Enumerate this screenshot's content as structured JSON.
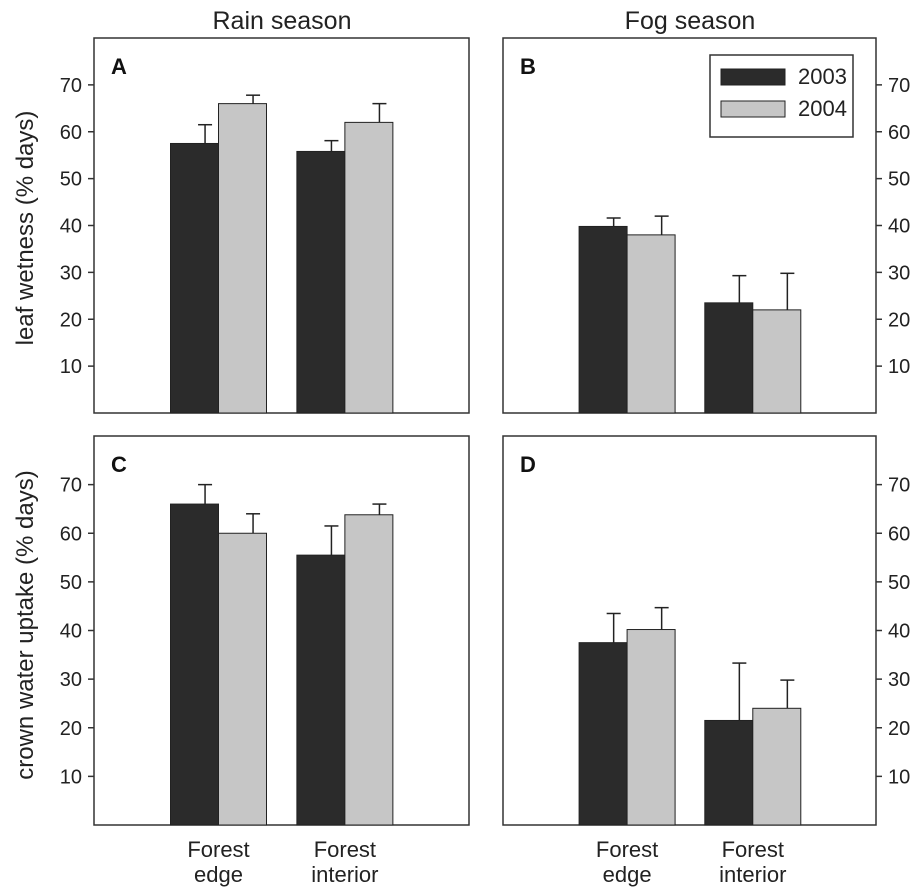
{
  "column_titles": [
    "Rain season",
    "Fog season"
  ],
  "legend": [
    "2003",
    "2004"
  ],
  "colors": {
    "2003": "#2b2b2b",
    "2004": "#c6c6c6",
    "frame": "#333333"
  },
  "row_ylabels": [
    "leaf wetness (% days)",
    "crown water uptake (% days)"
  ],
  "chart_data": [
    {
      "type": "bar",
      "panel": "A",
      "title": "Rain season",
      "ylabel": "leaf wetness (% days)",
      "categories": [
        "Forest edge",
        "Forest interior"
      ],
      "ylim": [
        0,
        80
      ],
      "yticks": [
        10,
        20,
        30,
        40,
        50,
        60,
        70
      ],
      "series": [
        {
          "name": "2003",
          "values": [
            57.5,
            55.8
          ],
          "errors": [
            4.0,
            2.3
          ]
        },
        {
          "name": "2004",
          "values": [
            66.0,
            62.0
          ],
          "errors": [
            1.8,
            4.0
          ]
        }
      ]
    },
    {
      "type": "bar",
      "panel": "B",
      "title": "Fog season",
      "categories": [
        "Forest edge",
        "Forest interior"
      ],
      "ylim": [
        0,
        80
      ],
      "yticks": [
        10,
        20,
        30,
        40,
        50,
        60,
        70
      ],
      "legend": "top-right",
      "series": [
        {
          "name": "2003",
          "values": [
            39.8,
            23.5
          ],
          "errors": [
            1.8,
            5.8
          ]
        },
        {
          "name": "2004",
          "values": [
            38.0,
            22.0
          ],
          "errors": [
            4.0,
            7.8
          ]
        }
      ]
    },
    {
      "type": "bar",
      "panel": "C",
      "ylabel": "crown water uptake (% days)",
      "categories": [
        "Forest edge",
        "Forest interior"
      ],
      "ylim": [
        0,
        80
      ],
      "yticks": [
        10,
        20,
        30,
        40,
        50,
        60,
        70
      ],
      "series": [
        {
          "name": "2003",
          "values": [
            66.0,
            55.5
          ],
          "errors": [
            4.0,
            6.0
          ]
        },
        {
          "name": "2004",
          "values": [
            60.0,
            63.8
          ],
          "errors": [
            4.0,
            2.2
          ]
        }
      ]
    },
    {
      "type": "bar",
      "panel": "D",
      "categories": [
        "Forest edge",
        "Forest interior"
      ],
      "ylim": [
        0,
        80
      ],
      "yticks": [
        10,
        20,
        30,
        40,
        50,
        60,
        70
      ],
      "series": [
        {
          "name": "2003",
          "values": [
            37.5,
            21.5
          ],
          "errors": [
            6.0,
            11.8
          ]
        },
        {
          "name": "2004",
          "values": [
            40.2,
            24.0
          ],
          "errors": [
            4.5,
            5.8
          ]
        }
      ]
    }
  ]
}
